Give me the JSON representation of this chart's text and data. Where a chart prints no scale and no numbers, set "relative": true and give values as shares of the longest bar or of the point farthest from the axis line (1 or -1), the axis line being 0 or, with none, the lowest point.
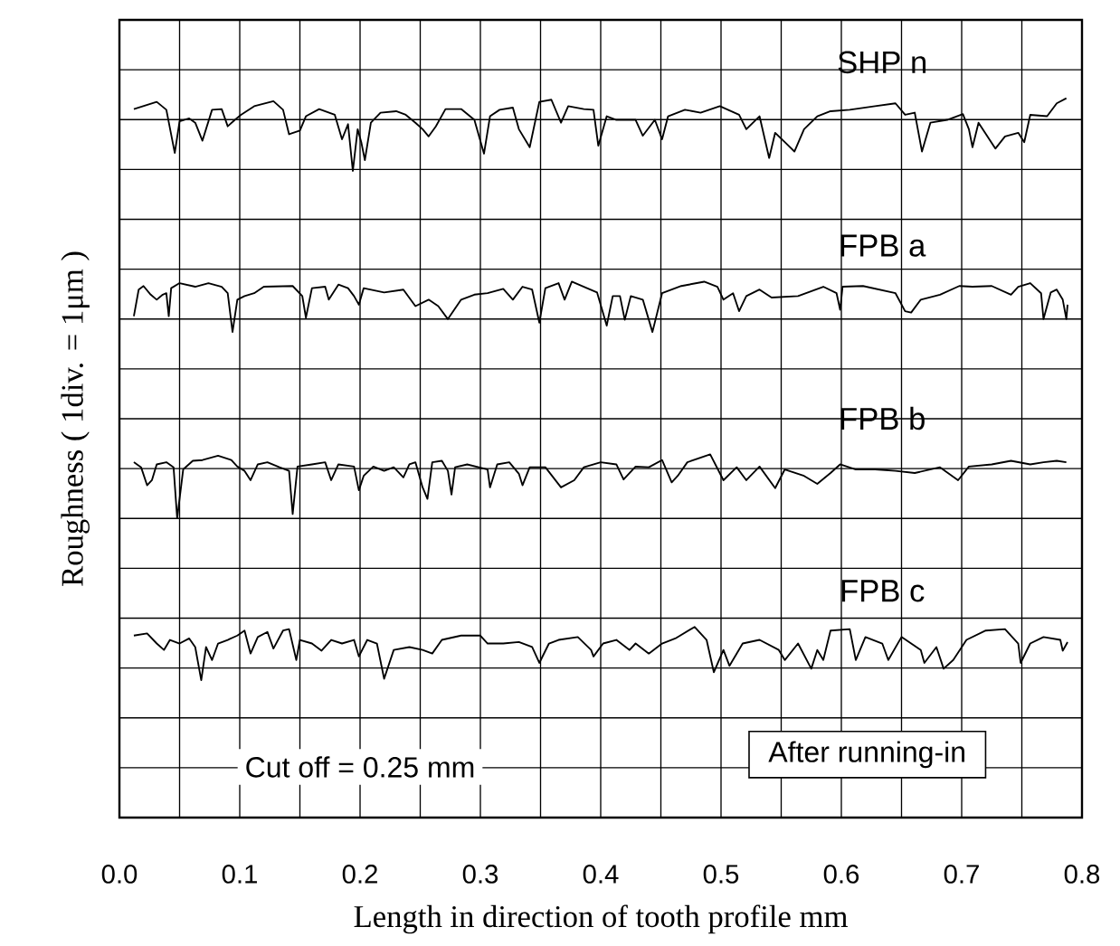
{
  "chart_data": {
    "type": "line",
    "relative": true,
    "xlabel": "Length in direction of tooth profile   mm",
    "ylabel": "Roughness ( 1div. = 1μm )",
    "xlim": [
      0,
      0.8
    ],
    "xticks": [
      {
        "value": 0,
        "label": "0.0"
      },
      0.1,
      0.2,
      0.3,
      0.4,
      0.5,
      0.6,
      0.7,
      {
        "value": 0.8,
        "label": "0.8"
      }
    ],
    "grid": true,
    "tick_labels": "x",
    "marker": "none",
    "line_style": "solid",
    "annotations": [
      "Cut off = 0.25 mm",
      "After running-in"
    ],
    "series": [
      {
        "name": "SHP n",
        "color": "#000000",
        "x": [
          0.012,
          0.031,
          0.039,
          0.046,
          0.05,
          0.058,
          0.063,
          0.069,
          0.077,
          0.085,
          0.09,
          0.096,
          0.101,
          0.112,
          0.128,
          0.136,
          0.141,
          0.15,
          0.155,
          0.166,
          0.179,
          0.185,
          0.19,
          0.194,
          0.198,
          0.201,
          0.204,
          0.209,
          0.217,
          0.23,
          0.238,
          0.246,
          0.252,
          0.257,
          0.263,
          0.271,
          0.284,
          0.295,
          0.303,
          0.308,
          0.316,
          0.327,
          0.332,
          0.341,
          0.349,
          0.359,
          0.367,
          0.373,
          0.386,
          0.394,
          0.398,
          0.405,
          0.413,
          0.429,
          0.435,
          0.445,
          0.451,
          0.456,
          0.47,
          0.483,
          0.499,
          0.515,
          0.521,
          0.532,
          0.54,
          0.545,
          0.553,
          0.561,
          0.569,
          0.58,
          0.591,
          0.607,
          0.628,
          0.645,
          0.653,
          0.661,
          0.667,
          0.674,
          0.688,
          0.701,
          0.706,
          0.709,
          0.714,
          0.728,
          0.736,
          0.747,
          0.752,
          0.757,
          0.771,
          0.779,
          0.787
        ],
        "values": [
          0.985,
          0.995,
          0.984,
          0.924,
          0.968,
          0.972,
          0.966,
          0.941,
          0.984,
          0.985,
          0.961,
          0.97,
          0.977,
          0.989,
          0.996,
          0.984,
          0.95,
          0.955,
          0.975,
          0.985,
          0.977,
          0.943,
          0.964,
          0.899,
          0.957,
          0.939,
          0.914,
          0.966,
          0.98,
          0.982,
          0.977,
          0.966,
          0.957,
          0.947,
          0.961,
          0.985,
          0.985,
          0.97,
          0.923,
          0.975,
          0.984,
          0.987,
          0.957,
          0.932,
          0.995,
          0.998,
          0.966,
          0.989,
          0.985,
          0.984,
          0.934,
          0.975,
          0.97,
          0.97,
          0.948,
          0.97,
          0.943,
          0.975,
          0.984,
          0.98,
          0.989,
          0.977,
          0.957,
          0.975,
          0.917,
          0.952,
          0.939,
          0.926,
          0.957,
          0.975,
          0.982,
          0.984,
          0.989,
          0.993,
          0.977,
          0.98,
          0.926,
          0.966,
          0.97,
          0.978,
          0.957,
          0.932,
          0.966,
          0.93,
          0.947,
          0.952,
          0.939,
          0.977,
          0.975,
          0.993,
          1.0
        ]
      },
      {
        "name": "FPB a",
        "color": "#000000",
        "x": [
          0.012,
          0.016,
          0.02,
          0.026,
          0.031,
          0.036,
          0.039,
          0.041,
          0.043,
          0.05,
          0.063,
          0.074,
          0.085,
          0.09,
          0.094,
          0.098,
          0.104,
          0.112,
          0.12,
          0.144,
          0.152,
          0.155,
          0.16,
          0.171,
          0.174,
          0.182,
          0.19,
          0.195,
          0.199,
          0.203,
          0.22,
          0.236,
          0.246,
          0.257,
          0.265,
          0.273,
          0.284,
          0.295,
          0.306,
          0.319,
          0.327,
          0.335,
          0.343,
          0.349,
          0.354,
          0.365,
          0.37,
          0.376,
          0.386,
          0.397,
          0.405,
          0.41,
          0.416,
          0.42,
          0.425,
          0.435,
          0.443,
          0.451,
          0.467,
          0.486,
          0.497,
          0.502,
          0.51,
          0.515,
          0.521,
          0.532,
          0.542,
          0.564,
          0.585,
          0.596,
          0.599,
          0.601,
          0.618,
          0.645,
          0.653,
          0.658,
          0.666,
          0.682,
          0.698,
          0.709,
          0.725,
          0.741,
          0.747,
          0.757,
          0.766,
          0.768,
          0.774,
          0.779,
          0.784,
          0.787,
          0.788
        ],
        "values": [
          0.697,
          0.734,
          0.739,
          0.727,
          0.72,
          0.727,
          0.729,
          0.697,
          0.736,
          0.743,
          0.738,
          0.743,
          0.738,
          0.729,
          0.675,
          0.72,
          0.725,
          0.729,
          0.738,
          0.739,
          0.725,
          0.695,
          0.736,
          0.738,
          0.72,
          0.741,
          0.736,
          0.725,
          0.713,
          0.736,
          0.73,
          0.734,
          0.711,
          0.72,
          0.711,
          0.693,
          0.72,
          0.727,
          0.729,
          0.735,
          0.72,
          0.738,
          0.734,
          0.688,
          0.736,
          0.743,
          0.72,
          0.745,
          0.738,
          0.73,
          0.684,
          0.725,
          0.725,
          0.692,
          0.725,
          0.72,
          0.675,
          0.729,
          0.739,
          0.745,
          0.738,
          0.72,
          0.729,
          0.704,
          0.725,
          0.734,
          0.723,
          0.725,
          0.738,
          0.729,
          0.706,
          0.738,
          0.739,
          0.729,
          0.704,
          0.702,
          0.72,
          0.727,
          0.739,
          0.738,
          0.739,
          0.727,
          0.738,
          0.743,
          0.729,
          0.693,
          0.73,
          0.734,
          0.72,
          0.693,
          0.713
        ]
      },
      {
        "name": "FPB b",
        "color": "#000000",
        "x": [
          0.012,
          0.018,
          0.023,
          0.027,
          0.031,
          0.039,
          0.045,
          0.048,
          0.053,
          0.061,
          0.069,
          0.082,
          0.093,
          0.098,
          0.104,
          0.109,
          0.115,
          0.123,
          0.133,
          0.141,
          0.144,
          0.148,
          0.16,
          0.171,
          0.176,
          0.182,
          0.195,
          0.199,
          0.203,
          0.211,
          0.22,
          0.228,
          0.236,
          0.241,
          0.246,
          0.252,
          0.256,
          0.26,
          0.268,
          0.273,
          0.276,
          0.279,
          0.289,
          0.306,
          0.308,
          0.314,
          0.324,
          0.332,
          0.335,
          0.341,
          0.354,
          0.367,
          0.378,
          0.386,
          0.4,
          0.413,
          0.419,
          0.429,
          0.44,
          0.451,
          0.459,
          0.464,
          0.472,
          0.491,
          0.502,
          0.513,
          0.521,
          0.532,
          0.545,
          0.553,
          0.569,
          0.58,
          0.591,
          0.599,
          0.612,
          0.628,
          0.645,
          0.661,
          0.682,
          0.697,
          0.706,
          0.725,
          0.741,
          0.757,
          0.768,
          0.779,
          0.787
        ],
        "values": [
          0.494,
          0.487,
          0.462,
          0.469,
          0.491,
          0.494,
          0.487,
          0.416,
          0.484,
          0.496,
          0.497,
          0.503,
          0.497,
          0.488,
          0.482,
          0.469,
          0.491,
          0.494,
          0.487,
          0.482,
          0.422,
          0.488,
          0.491,
          0.494,
          0.469,
          0.491,
          0.488,
          0.455,
          0.475,
          0.488,
          0.482,
          0.487,
          0.473,
          0.491,
          0.494,
          0.459,
          0.443,
          0.494,
          0.496,
          0.482,
          0.449,
          0.487,
          0.491,
          0.484,
          0.459,
          0.491,
          0.494,
          0.478,
          0.462,
          0.487,
          0.487,
          0.459,
          0.469,
          0.487,
          0.494,
          0.491,
          0.47,
          0.488,
          0.487,
          0.497,
          0.466,
          0.475,
          0.494,
          0.505,
          0.469,
          0.487,
          0.469,
          0.488,
          0.458,
          0.484,
          0.475,
          0.464,
          0.479,
          0.491,
          0.484,
          0.484,
          0.482,
          0.479,
          0.487,
          0.469,
          0.488,
          0.491,
          0.496,
          0.491,
          0.494,
          0.496,
          0.494
        ]
      },
      {
        "name": "FPB c",
        "color": "#000000",
        "x": [
          0.012,
          0.023,
          0.031,
          0.037,
          0.042,
          0.05,
          0.058,
          0.063,
          0.068,
          0.072,
          0.077,
          0.082,
          0.09,
          0.098,
          0.104,
          0.109,
          0.115,
          0.123,
          0.128,
          0.136,
          0.141,
          0.147,
          0.15,
          0.16,
          0.168,
          0.176,
          0.185,
          0.195,
          0.199,
          0.206,
          0.214,
          0.22,
          0.228,
          0.241,
          0.252,
          0.26,
          0.268,
          0.284,
          0.3,
          0.306,
          0.319,
          0.332,
          0.343,
          0.349,
          0.357,
          0.365,
          0.381,
          0.392,
          0.394,
          0.402,
          0.413,
          0.424,
          0.429,
          0.44,
          0.451,
          0.462,
          0.478,
          0.488,
          0.494,
          0.502,
          0.507,
          0.518,
          0.532,
          0.548,
          0.553,
          0.564,
          0.575,
          0.58,
          0.585,
          0.591,
          0.607,
          0.612,
          0.62,
          0.634,
          0.639,
          0.65,
          0.666,
          0.669,
          0.679,
          0.685,
          0.693,
          0.704,
          0.72,
          0.736,
          0.747,
          0.749,
          0.757,
          0.768,
          0.782,
          0.784,
          0.788
        ],
        "values": [
          0.253,
          0.256,
          0.242,
          0.233,
          0.247,
          0.242,
          0.249,
          0.237,
          0.191,
          0.237,
          0.219,
          0.242,
          0.247,
          0.253,
          0.26,
          0.228,
          0.251,
          0.258,
          0.235,
          0.26,
          0.262,
          0.219,
          0.247,
          0.242,
          0.232,
          0.247,
          0.242,
          0.247,
          0.224,
          0.247,
          0.242,
          0.193,
          0.233,
          0.237,
          0.233,
          0.228,
          0.247,
          0.253,
          0.253,
          0.242,
          0.242,
          0.244,
          0.237,
          0.215,
          0.242,
          0.247,
          0.251,
          0.233,
          0.224,
          0.242,
          0.247,
          0.233,
          0.242,
          0.228,
          0.242,
          0.249,
          0.265,
          0.247,
          0.202,
          0.233,
          0.211,
          0.242,
          0.247,
          0.233,
          0.219,
          0.242,
          0.207,
          0.233,
          0.219,
          0.26,
          0.262,
          0.219,
          0.251,
          0.242,
          0.219,
          0.251,
          0.233,
          0.215,
          0.237,
          0.207,
          0.219,
          0.247,
          0.26,
          0.262,
          0.242,
          0.215,
          0.242,
          0.251,
          0.247,
          0.232,
          0.244
        ]
      }
    ]
  }
}
